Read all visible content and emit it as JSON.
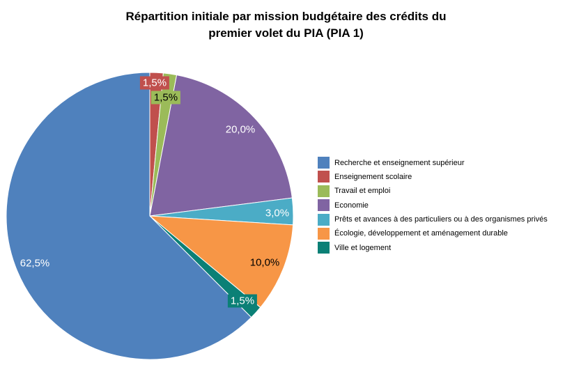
{
  "title_lines": [
    "Répartition initiale par mission budgétaire des crédits du",
    "premier volet du PIA (PIA 1)"
  ],
  "background_color": "#FFFFFF",
  "chart_data": {
    "type": "pie",
    "title": "Répartition initiale par mission budgétaire des crédits du premier volet du PIA (PIA 1)",
    "unit": "%",
    "decimal_separator": ",",
    "start_angle_deg": 0,
    "direction": "clockwise",
    "legend_position": "right",
    "slices": [
      {
        "id": "enseignement-scolaire",
        "label": "Enseignement scolaire",
        "value": 1.5,
        "display": "1,5%",
        "color": "#C0504D",
        "text_color": "#FFFFFF"
      },
      {
        "id": "travail-et-emploi",
        "label": "Travail et emploi",
        "value": 1.5,
        "display": "1,5%",
        "color": "#9BBB59",
        "text_color": "#000000"
      },
      {
        "id": "economie",
        "label": "Economie",
        "value": 20.0,
        "display": "20,0%",
        "color": "#8064A2",
        "text_color": "#FFFFFF"
      },
      {
        "id": "prets-et-avances",
        "label": "Prêts et avances à des particuliers ou à des organismes privés",
        "value": 3.0,
        "display": "3,0%",
        "color": "#4BACC6",
        "text_color": "#FFFFFF"
      },
      {
        "id": "ecologie-developpement",
        "label": "Écologie, développement et aménagement durable",
        "value": 10.0,
        "display": "10,0%",
        "color": "#F79646",
        "text_color": "#000000"
      },
      {
        "id": "ville-et-logement",
        "label": "Ville et logement",
        "value": 1.5,
        "display": "1,5%",
        "color": "#0B8076",
        "text_color": "#FFFFFF"
      },
      {
        "id": "recherche-enseignement-superieur",
        "label": "Recherche et enseignement supérieur",
        "value": 62.5,
        "display": "62,5%",
        "color": "#4F81BD",
        "text_color": "#FFFFFF"
      }
    ],
    "legend_order": [
      "Recherche et enseignement supérieur",
      "Enseignement scolaire",
      "Travail et emploi",
      "Economie",
      "Prêts et avances à des particuliers ou à des organismes privés",
      "Écologie, développement et aménagement durable",
      "Ville et logement"
    ]
  }
}
